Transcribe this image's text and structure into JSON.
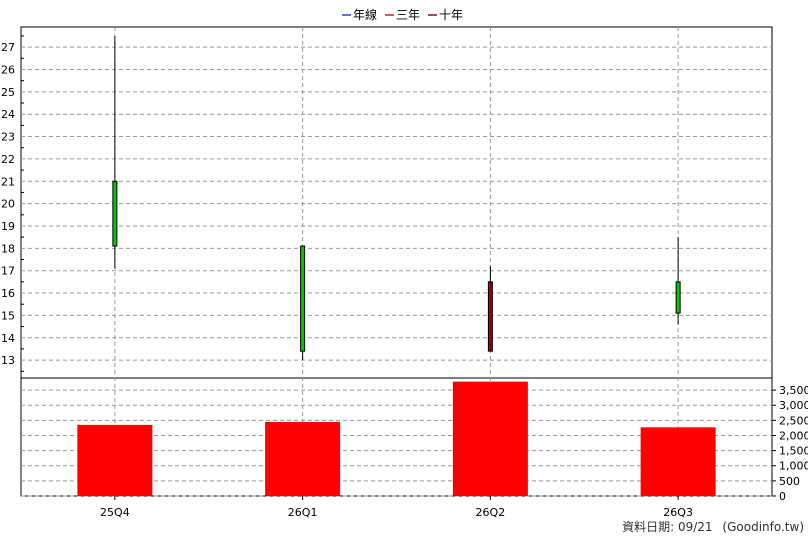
{
  "legend": {
    "items": [
      {
        "label": "年線",
        "color": "#1f4fd1"
      },
      {
        "label": "三年",
        "color": "#e01818"
      },
      {
        "label": "十年",
        "color": "#8b0a3a"
      }
    ]
  },
  "footer": {
    "date_label": "資料日期: 09/21",
    "source_label": "(Goodinfo.tw)"
  },
  "chart_data": [
    {
      "type": "candlestick",
      "categories": [
        "25Q4",
        "26Q1",
        "26Q2",
        "26Q3"
      ],
      "ohlc": [
        {
          "category": "25Q4",
          "open": 18.1,
          "high": 27.5,
          "low": 17.1,
          "close": 21.0,
          "color": "#00c800"
        },
        {
          "category": "26Q1",
          "open": 13.4,
          "high": 18.1,
          "low": 13.0,
          "close": 18.1,
          "color": "#00c800"
        },
        {
          "category": "26Q2",
          "open": 16.5,
          "high": 17.2,
          "low": 13.4,
          "close": 13.4,
          "color": "#a00000"
        },
        {
          "category": "26Q3",
          "open": 15.1,
          "high": 18.5,
          "low": 14.6,
          "close": 16.5,
          "color": "#00c800"
        }
      ],
      "yticks": [
        "13",
        "14",
        "15",
        "16",
        "17",
        "18",
        "19",
        "20",
        "21",
        "22",
        "23",
        "24",
        "25",
        "26",
        "27"
      ],
      "ylim": [
        12.2,
        27.9
      ],
      "grid": true
    },
    {
      "type": "bar",
      "categories": [
        "25Q4",
        "26Q1",
        "26Q2",
        "26Q3"
      ],
      "values": [
        2350,
        2450,
        3780,
        2270
      ],
      "color": "#ff0000",
      "yticks": [
        "0",
        "500",
        "1,000",
        "1,500",
        "2,000",
        "2,500",
        "3,000",
        "3,500"
      ],
      "ylim": [
        0,
        3900
      ],
      "grid": true
    }
  ]
}
